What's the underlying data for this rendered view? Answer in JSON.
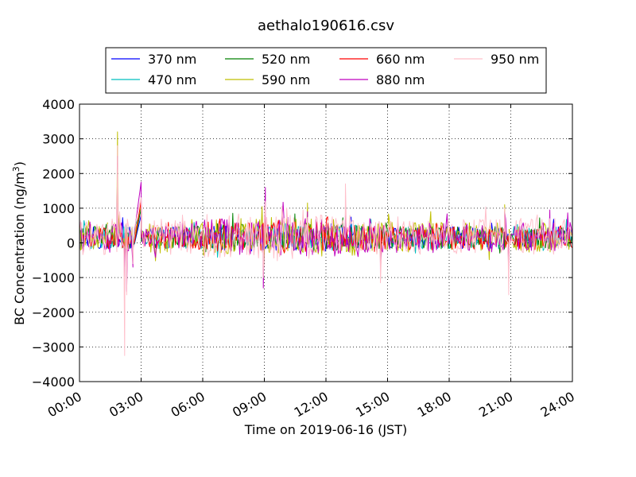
{
  "chart_data": {
    "type": "line",
    "title": "aethalo190616.csv",
    "xlabel": "Time on 2019-06-16 (JST)",
    "ylabel": "BC Concentration (ng/m",
    "ylabel_sup": "3",
    "ylabel_close": ")",
    "xlim": [
      0,
      24
    ],
    "ylim": [
      -4000,
      4000
    ],
    "x_tick_values": [
      0,
      3,
      6,
      9,
      12,
      15,
      18,
      21,
      24
    ],
    "x_tick_labels": [
      "00:00",
      "03:00",
      "06:00",
      "09:00",
      "12:00",
      "15:00",
      "18:00",
      "21:00",
      "24:00"
    ],
    "y_tick_values": [
      -4000,
      -3000,
      -2000,
      -1000,
      0,
      1000,
      2000,
      3000,
      4000
    ],
    "y_tick_labels": [
      "−4000",
      "−3000",
      "−2000",
      "−1000",
      "0",
      "1000",
      "2000",
      "3000",
      "4000"
    ],
    "grid": true,
    "legend_position": "top",
    "series": [
      {
        "name": "370 nm",
        "color": "#0000ff",
        "amp": 320,
        "seed": 11
      },
      {
        "name": "470 nm",
        "color": "#00bfbf",
        "amp": 330,
        "seed": 23
      },
      {
        "name": "520 nm",
        "color": "#008000",
        "amp": 340,
        "seed": 37
      },
      {
        "name": "590 nm",
        "color": "#bfbf00",
        "amp": 430,
        "seed": 41
      },
      {
        "name": "660 nm",
        "color": "#ff0000",
        "amp": 360,
        "seed": 53
      },
      {
        "name": "880 nm",
        "color": "#bf00bf",
        "amp": 450,
        "seed": 67
      },
      {
        "name": "950 nm",
        "color": "#ffc0cb",
        "amp": 520,
        "seed": 79
      }
    ],
    "events": [
      {
        "x": 0.05,
        "values": [
          450,
          480,
          500,
          550,
          520,
          600,
          650
        ]
      },
      {
        "x": 1.85,
        "values": [
          900,
          1200,
          1500,
          3200,
          2300,
          2500,
          2800
        ]
      },
      {
        "x": 1.95,
        "values": [
          100,
          300,
          500,
          800,
          600,
          700,
          900
        ]
      },
      {
        "x": 2.2,
        "values": [
          -300,
          -500,
          -600,
          -700,
          -800,
          -1100,
          -3250
        ]
      },
      {
        "x": 2.3,
        "values": [
          -500,
          -600,
          -700,
          -900,
          -1000,
          -1400,
          -1500
        ]
      },
      {
        "x": 2.6,
        "values": [
          -150,
          -200,
          -250,
          -400,
          -500,
          -700,
          -600
        ]
      },
      {
        "x": 3.0,
        "values": [
          800,
          900,
          1000,
          1100,
          1200,
          1750,
          1300
        ]
      },
      {
        "x": 9.05,
        "values": [
          400,
          500,
          600,
          900,
          700,
          1600,
          1200
        ]
      },
      {
        "x": 8.95,
        "values": [
          -400,
          -500,
          -700,
          -900,
          -800,
          -1300,
          -1000
        ]
      },
      {
        "x": 11.1,
        "values": [
          200,
          300,
          400,
          1150,
          500,
          900,
          700
        ]
      },
      {
        "x": 12.95,
        "values": [
          300,
          400,
          500,
          700,
          600,
          900,
          1700
        ]
      },
      {
        "x": 14.65,
        "values": [
          -300,
          -400,
          -500,
          -600,
          -700,
          -900,
          -1150
        ]
      },
      {
        "x": 20.9,
        "values": [
          -300,
          -400,
          -500,
          -700,
          -800,
          -1000,
          -1500
        ]
      },
      {
        "x": 20.7,
        "values": [
          300,
          400,
          500,
          1100,
          600,
          900,
          1000
        ]
      },
      {
        "x": 22.9,
        "values": [
          300,
          400,
          500,
          600,
          600,
          950,
          700
        ]
      }
    ]
  }
}
